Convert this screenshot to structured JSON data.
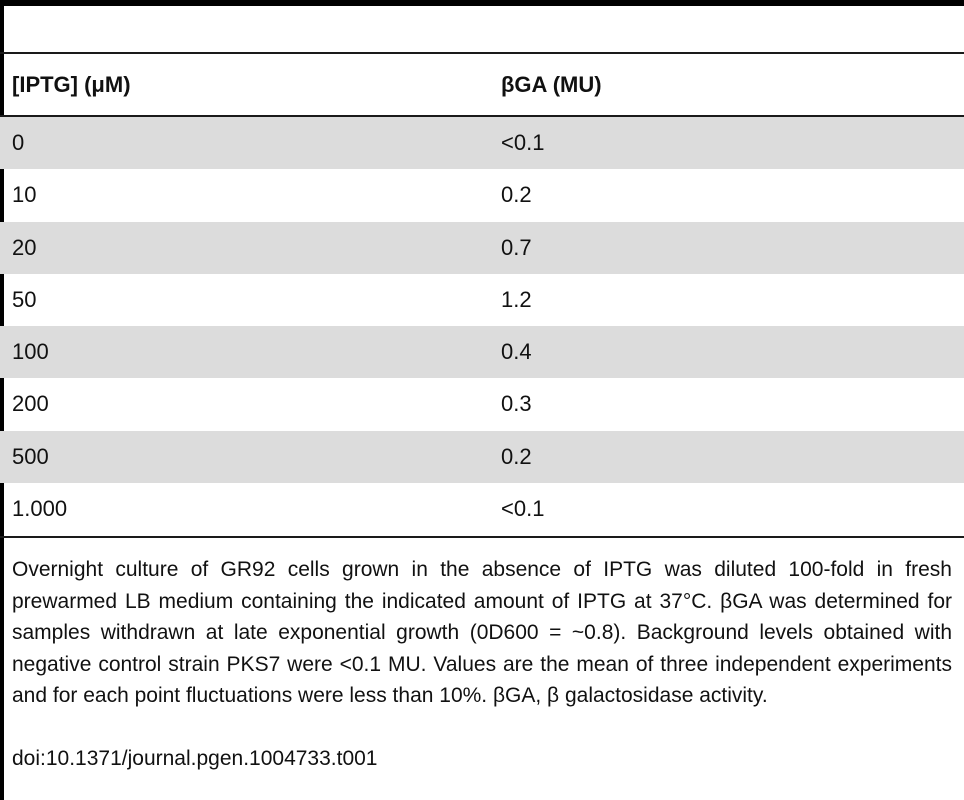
{
  "table": {
    "headers": {
      "iptg": "[IPTG] (μM)",
      "bga": "βGA (MU)"
    },
    "rows": [
      {
        "iptg": "0",
        "bga": "<0.1"
      },
      {
        "iptg": "10",
        "bga": "0.2"
      },
      {
        "iptg": "20",
        "bga": "0.7"
      },
      {
        "iptg": "50",
        "bga": "1.2"
      },
      {
        "iptg": "100",
        "bga": "0.4"
      },
      {
        "iptg": "200",
        "bga": "0.3"
      },
      {
        "iptg": "500",
        "bga": "0.2"
      },
      {
        "iptg": "1.000",
        "bga": "<0.1"
      }
    ]
  },
  "footnote": {
    "text": "Overnight culture of GR92 cells grown in the absence of IPTG was diluted 100-fold in fresh prewarmed LB medium containing the indicated amount of IPTG at 37°C. βGA was determined for samples withdrawn at late exponential growth (0D600 = ~0.8). Background levels obtained with negative control strain PKS7 were <0.1 MU. Values are the mean of three independent experiments and for each point fluctuations were less than 10%. βGA, β galactosidase activity.",
    "doi": "doi:10.1371/journal.pgen.1004733.t001"
  },
  "colors": {
    "row_shade": "#dcdcdc",
    "rule": "#000000"
  }
}
